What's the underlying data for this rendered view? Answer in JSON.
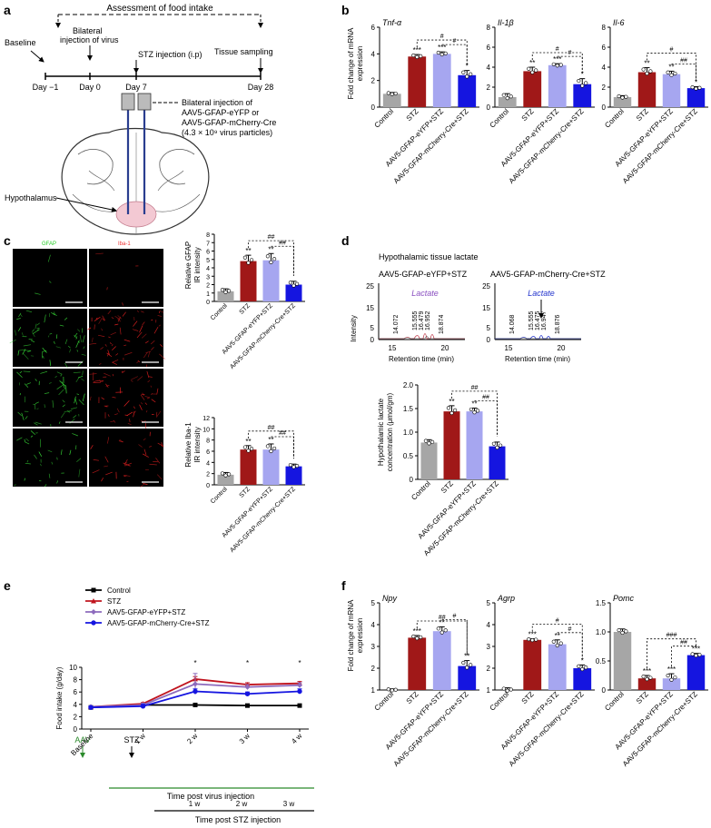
{
  "panel_letters": {
    "a": "a",
    "b": "b",
    "c": "c",
    "d": "d",
    "e": "e",
    "f": "f"
  },
  "colors": {
    "control": "#a6a6a6",
    "stz": "#a01818",
    "eyfp": "#a6a6f0",
    "mcherry": "#1515e0",
    "line_eyfp": "#8d6bbd",
    "line_stz": "#c0141e",
    "green_axis": "#2b8a2b",
    "lactate_purple": "#8a4fc0",
    "lactate_blue": "#2233cc",
    "brain_fill": "#f3c9d3"
  },
  "panel_a": {
    "assessment": "Assessment of food intake",
    "baseline": "Baseline",
    "bilateral1": "Bilateral",
    "bilateral2": "injection of virus",
    "stz_injection": "STZ injection (i.p)",
    "tissue_sampling": "Tissue sampling",
    "days": [
      "Day −1",
      "Day 0",
      "Day 7",
      "Day 28"
    ],
    "injection_note": [
      "Bilateral injection of",
      "AAV5-GFAP-eYFP or",
      "AAV5-GFAP-mCherry-Cre",
      "(4.3 × 10⁹ virus particles)"
    ],
    "hypothalamus": "Hypothalamus"
  },
  "groups": [
    "Control",
    "STZ",
    "AAV5-GFAP-eYFP+STZ",
    "AAV5-GFAP-mCherry-Cre+STZ"
  ],
  "panel_b": {
    "ylabel": [
      "Fold change of mRNA",
      "expression"
    ],
    "charts": [
      {
        "title": "Tnf-α",
        "values": [
          1.0,
          3.8,
          4.0,
          2.4
        ],
        "errors": [
          0.1,
          0.15,
          0.15,
          0.35
        ],
        "ylim": [
          0,
          6
        ],
        "ticks": [
          0,
          2,
          4,
          6
        ],
        "stars": [
          "",
          "***",
          "***",
          "*"
        ],
        "hashes": [
          "#",
          "#"
        ]
      },
      {
        "title": "Il-1β",
        "values": [
          1.0,
          3.6,
          4.2,
          2.3
        ],
        "errors": [
          0.35,
          0.4,
          0.15,
          0.55
        ],
        "ylim": [
          0,
          8
        ],
        "ticks": [
          0,
          2,
          4,
          6,
          8
        ],
        "stars": [
          "",
          "**",
          "***",
          "*"
        ],
        "hashes": [
          "#",
          "#"
        ]
      },
      {
        "title": "Il-6",
        "values": [
          1.0,
          3.5,
          3.3,
          1.9
        ],
        "errors": [
          0.15,
          0.45,
          0.3,
          0.15
        ],
        "ylim": [
          0,
          8
        ],
        "ticks": [
          0,
          2,
          4,
          6,
          8
        ],
        "stars": [
          "",
          "**",
          "**",
          "*"
        ],
        "hashes": [
          "#",
          "##"
        ]
      }
    ]
  },
  "panel_c": {
    "columns": [
      "GFAP",
      "Iba-1"
    ],
    "rows": [
      "Control",
      "STZ",
      "AAV5-GFAP-eYFP+STZ",
      "AAV5-GFAP-mCherry-Cre+STZ"
    ],
    "charts": [
      {
        "ylabel": [
          "Relative GFAP",
          "IR intensity"
        ],
        "values": [
          1.2,
          4.8,
          4.9,
          2.0
        ],
        "errors": [
          0.3,
          0.7,
          0.8,
          0.4
        ],
        "ylim": [
          0,
          8
        ],
        "ticks": [
          0,
          1,
          2,
          3,
          4,
          5,
          6,
          7,
          8
        ],
        "stars": [
          "",
          "**",
          "**",
          ""
        ],
        "hashes": [
          "##",
          "##"
        ]
      },
      {
        "ylabel": [
          "Relative Iba-1",
          "IR intensity"
        ],
        "values": [
          1.8,
          6.3,
          6.3,
          3.3
        ],
        "errors": [
          0.4,
          0.7,
          1.0,
          0.4
        ],
        "ylim": [
          0,
          12
        ],
        "ticks": [
          0,
          2,
          4,
          6,
          8,
          10,
          12
        ],
        "stars": [
          "",
          "**",
          "**",
          ""
        ],
        "hashes": [
          "##",
          "##"
        ]
      }
    ]
  },
  "panel_d": {
    "title": "Hypothalamic tissue lactate",
    "chrom": [
      {
        "title": "AAV5-GFAP-eYFP+STZ",
        "lactate": "Lactate",
        "peaks": [
          "14.072",
          "15.555",
          "16.479",
          "16.952",
          "18.874"
        ],
        "ylabel": "Intensity",
        "xlabel": "Retention time (min)",
        "yticks": [
          "25",
          "15",
          "5",
          "0"
        ],
        "xticks": [
          "15",
          "20"
        ]
      },
      {
        "title": "AAV5-GFAP-mCherry-Cre+STZ",
        "lactate": "Lactate",
        "peaks": [
          "14.068",
          "15.555",
          "16.475",
          "16.947",
          "18.876"
        ],
        "xlabel": "Retention time (min)",
        "yticks": [
          "25",
          "15",
          "5",
          "0"
        ],
        "xticks": [
          "15",
          "20"
        ]
      }
    ],
    "chart": {
      "ylabel": [
        "Hypothalamic lactate",
        "concentration (μmol/gm)"
      ],
      "values": [
        0.78,
        1.44,
        1.44,
        0.7
      ],
      "errors": [
        0.06,
        0.12,
        0.07,
        0.09
      ],
      "ylim": [
        0,
        2.0
      ],
      "ticks": [
        "0",
        "0.5",
        "1.0",
        "1.5",
        "2.0"
      ],
      "stars": [
        "",
        "**",
        "**",
        ""
      ],
      "hashes": [
        "##",
        "##"
      ]
    }
  },
  "panel_e": {
    "ylabel": "Food intake (g/day)",
    "legend": [
      "Control",
      "STZ",
      "AAV5-GFAP-eYFP+STZ",
      "AAV5-GFAP-mCherry-Cre+STZ"
    ],
    "x": [
      "Baseline",
      "1 w",
      "2 w",
      "3 w",
      "4 w"
    ],
    "series": [
      {
        "name": "Control",
        "values": [
          3.5,
          3.9,
          3.9,
          3.8,
          3.8
        ],
        "errors": [
          0.1,
          0.1,
          0.1,
          0.1,
          0.1
        ]
      },
      {
        "name": "STZ",
        "values": [
          3.6,
          4.1,
          8.1,
          7.2,
          7.4
        ],
        "errors": [
          0.1,
          0.2,
          0.4,
          0.3,
          0.3
        ]
      },
      {
        "name": "AAV5-GFAP-eYFP+STZ",
        "values": [
          3.6,
          3.9,
          7.3,
          6.8,
          7.1
        ],
        "errors": [
          0.1,
          0.3,
          1.7,
          0.4,
          0.4
        ]
      },
      {
        "name": "AAV5-GFAP-mCherry-Cre+STZ",
        "values": [
          3.5,
          3.7,
          6.1,
          5.7,
          6.1
        ],
        "errors": [
          0.2,
          0.3,
          0.4,
          0.3,
          0.4
        ]
      }
    ],
    "ylim": [
      0,
      10
    ],
    "ticks": [
      0,
      2,
      4,
      6,
      8,
      10
    ],
    "stars": [
      "",
      "",
      "*",
      "*",
      "*"
    ],
    "aav": "AAV",
    "stz": "STZ",
    "virus_axis": "Time post virus injection",
    "stz_axis": "Time post STZ injection",
    "stz_weeks": [
      "1 w",
      "2 w",
      "3 w"
    ]
  },
  "panel_f": {
    "ylabel": [
      "Fold change of mRNA",
      "expression"
    ],
    "charts": [
      {
        "title": "Npy",
        "values": [
          1.0,
          3.4,
          3.7,
          2.1
        ],
        "errors": [
          0.05,
          0.1,
          0.2,
          0.25
        ],
        "ylim": [
          1,
          5
        ],
        "ticks": [
          1,
          2,
          3,
          4,
          5
        ],
        "stars": [
          "",
          "***",
          "**",
          "**"
        ],
        "hashes": [
          "##",
          "#"
        ]
      },
      {
        "title": "Agrp",
        "values": [
          1.0,
          3.3,
          3.1,
          2.0
        ],
        "errors": [
          0.1,
          0.05,
          0.2,
          0.15
        ],
        "ylim": [
          1,
          5
        ],
        "ticks": [
          1,
          2,
          3,
          4,
          5
        ],
        "stars": [
          "",
          "***",
          "**",
          "*"
        ],
        "hashes": [
          "#",
          "#"
        ]
      },
      {
        "title": "Pomc",
        "values": [
          1.0,
          0.2,
          0.2,
          0.6
        ],
        "errors": [
          0.05,
          0.05,
          0.08,
          0.03
        ],
        "ylim": [
          0,
          1.5
        ],
        "ticks": [
          "0",
          "0.5",
          "1.0",
          "1.5"
        ],
        "stars": [
          "",
          "***",
          "***",
          "***"
        ],
        "hashes": [
          "###",
          "##"
        ]
      }
    ]
  }
}
